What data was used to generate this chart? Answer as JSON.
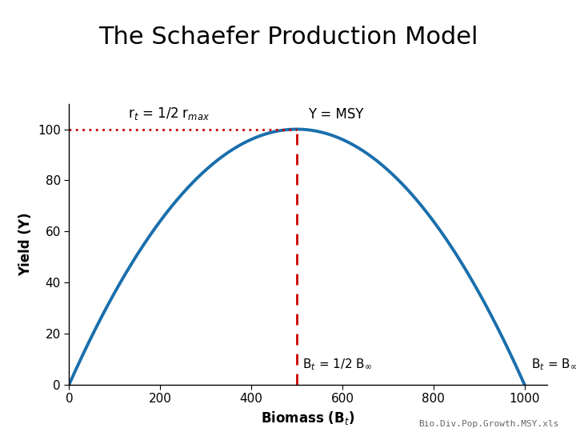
{
  "title": "The Schaefer Production Model",
  "xlabel": "Biomass (B$_t$)",
  "ylabel": "Yield (Y)",
  "B_inf": 1000,
  "xlim": [
    0,
    1050
  ],
  "ylim": [
    0,
    110
  ],
  "xticks": [
    0,
    200,
    400,
    600,
    800,
    1000
  ],
  "yticks": [
    0,
    20,
    40,
    60,
    80,
    100
  ],
  "curve_color": "#1a6fad",
  "curve_linewidth": 2.8,
  "dashed_color": "#cc0000",
  "dashed_linewidth": 2.0,
  "msy_x": 500,
  "msy_y": 100,
  "annotation_rt": "r$_t$ = 1/2 r$_{max}$",
  "annotation_Y": "Y = MSY",
  "annotation_Bt_half": "B$_t$ = 1/2 B$_\\infty$",
  "annotation_Bt_full": "B$_t$ = B$_\\infty$",
  "watermark": "Bio.Div.Pop.Growth.MSY.xls",
  "background_color": "#ffffff",
  "title_fontsize": 22,
  "axis_label_fontsize": 12,
  "tick_fontsize": 11,
  "annotation_fontsize": 12
}
